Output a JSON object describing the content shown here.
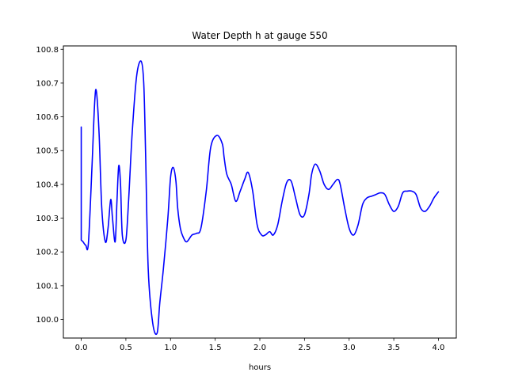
{
  "chart_data": {
    "type": "line",
    "title": "Water Depth h at gauge 550",
    "xlabel": "hours",
    "ylabel": "",
    "xlim": [
      -0.2,
      4.2
    ],
    "ylim": [
      99.945,
      100.81
    ],
    "xticks": [
      0.0,
      0.5,
      1.0,
      1.5,
      2.0,
      2.5,
      3.0,
      3.5,
      4.0
    ],
    "xtick_labels": [
      "0.0",
      "0.5",
      "1.0",
      "1.5",
      "2.0",
      "2.5",
      "3.0",
      "3.5",
      "4.0"
    ],
    "yticks": [
      100.0,
      100.1,
      100.2,
      100.3,
      100.4,
      100.5,
      100.6,
      100.7,
      100.8
    ],
    "ytick_labels": [
      "100.0",
      "100.1",
      "100.2",
      "100.3",
      "100.4",
      "100.5",
      "100.6",
      "100.7",
      "100.8"
    ],
    "grid": false,
    "series": [
      {
        "color": "#0000ff",
        "x": [
          0.0,
          0.0,
          0.02,
          0.05,
          0.08,
          0.12,
          0.15,
          0.17,
          0.2,
          0.23,
          0.27,
          0.3,
          0.33,
          0.35,
          0.38,
          0.4,
          0.42,
          0.44,
          0.46,
          0.5,
          0.53,
          0.57,
          0.62,
          0.67,
          0.7,
          0.72,
          0.75,
          0.8,
          0.85,
          0.88,
          0.92,
          0.97,
          1.0,
          1.03,
          1.06,
          1.08,
          1.11,
          1.14,
          1.18,
          1.24,
          1.29,
          1.34,
          1.4,
          1.45,
          1.52,
          1.58,
          1.6,
          1.63,
          1.68,
          1.73,
          1.78,
          1.83,
          1.87,
          1.92,
          1.97,
          2.02,
          2.06,
          2.11,
          2.15,
          2.2,
          2.25,
          2.3,
          2.35,
          2.4,
          2.45,
          2.5,
          2.55,
          2.58,
          2.62,
          2.67,
          2.72,
          2.77,
          2.82,
          2.87,
          2.9,
          2.95,
          3.0,
          3.05,
          3.1,
          3.15,
          3.2,
          3.25,
          3.3,
          3.35,
          3.4,
          3.45,
          3.5,
          3.55,
          3.6,
          3.65,
          3.7,
          3.75,
          3.8,
          3.85,
          3.9,
          3.95,
          4.0
        ],
        "y": [
          100.57,
          100.235,
          100.23,
          100.22,
          100.225,
          100.45,
          100.64,
          100.675,
          100.55,
          100.33,
          100.23,
          100.27,
          100.355,
          100.3,
          100.23,
          100.35,
          100.455,
          100.4,
          100.25,
          100.235,
          100.35,
          100.55,
          100.72,
          100.765,
          100.7,
          100.5,
          100.15,
          99.99,
          99.96,
          100.05,
          100.15,
          100.3,
          100.42,
          100.45,
          100.41,
          100.33,
          100.27,
          100.245,
          100.23,
          100.25,
          100.255,
          100.27,
          100.38,
          100.51,
          100.545,
          100.52,
          100.48,
          100.43,
          100.4,
          100.35,
          100.38,
          100.415,
          100.435,
          100.38,
          100.28,
          100.25,
          100.25,
          100.26,
          100.25,
          100.28,
          100.35,
          100.405,
          100.41,
          100.36,
          100.31,
          100.31,
          100.37,
          100.43,
          100.46,
          100.44,
          100.4,
          100.385,
          100.4,
          100.415,
          100.4,
          100.33,
          100.27,
          100.25,
          100.28,
          100.34,
          100.36,
          100.365,
          100.37,
          100.375,
          100.37,
          100.34,
          100.32,
          100.335,
          100.375,
          100.38,
          100.38,
          100.37,
          100.33,
          100.32,
          100.335,
          100.36,
          100.378
        ]
      }
    ]
  }
}
